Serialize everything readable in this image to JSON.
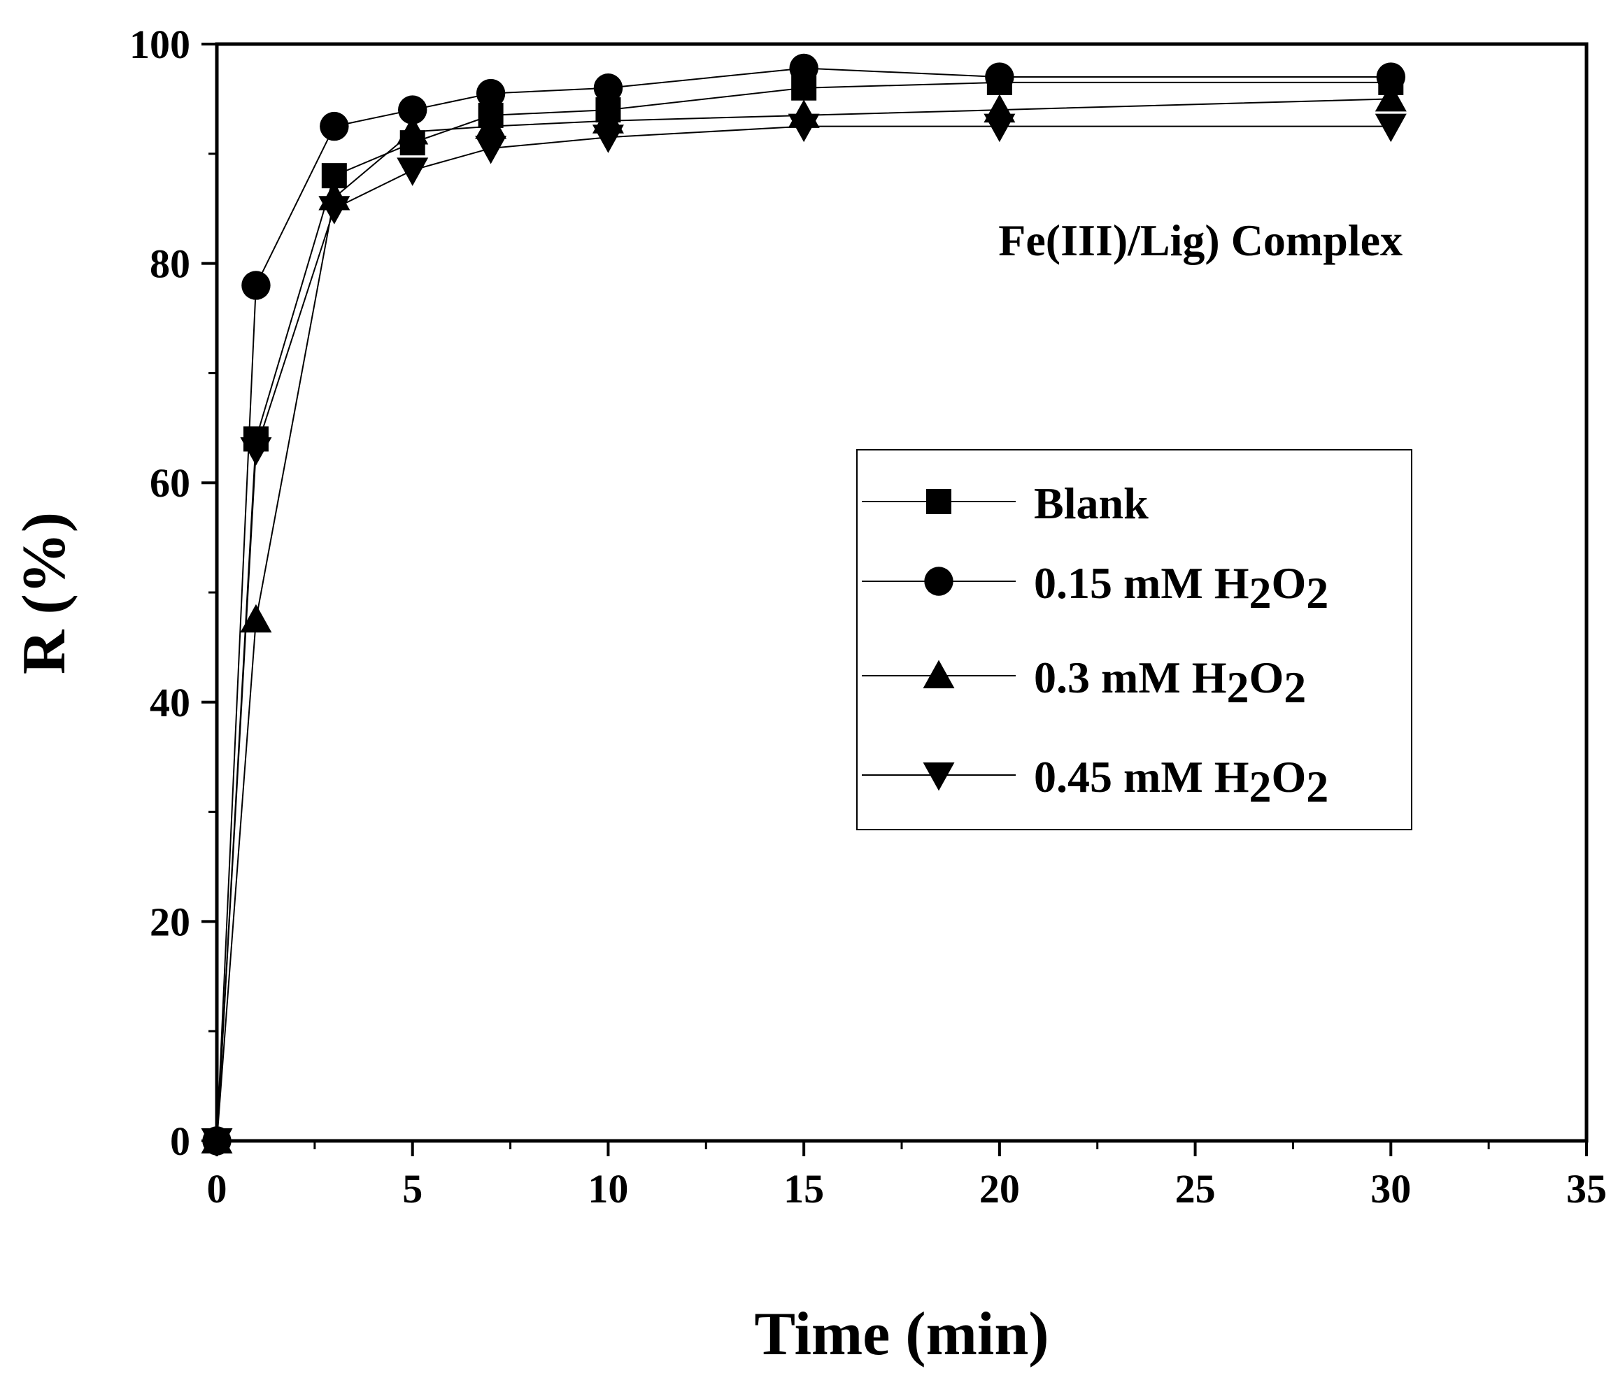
{
  "chart_data": {
    "type": "line",
    "xlabel": "Time (min)",
    "ylabel": "R (%)",
    "xlim": [
      0,
      35
    ],
    "ylim": [
      0,
      100
    ],
    "xticks": [
      "0",
      "5",
      "10",
      "15",
      "20",
      "25",
      "30",
      "35"
    ],
    "yticks": [
      "0",
      "20",
      "40",
      "60",
      "80",
      "100"
    ],
    "grid": false,
    "legend_position": "center-right",
    "annotation": "Fe(III)/Lig) Complex",
    "x": [
      0,
      1,
      3,
      5,
      7,
      10,
      15,
      20,
      30
    ],
    "series": [
      {
        "name": "Blank",
        "label_main": "Blank",
        "label_sub1": "",
        "label_mid": "",
        "label_sub2": "",
        "marker": "square",
        "values": [
          0,
          64,
          88,
          91,
          93.5,
          94,
          96,
          96.5,
          96.5
        ]
      },
      {
        "name": "0.15 mM H2O2",
        "label_main": "0.15 mM H",
        "label_sub1": "2",
        "label_mid": "O",
        "label_sub2": "2",
        "marker": "circle",
        "values": [
          0,
          78,
          92.5,
          94,
          95.5,
          96,
          97.8,
          97,
          97
        ]
      },
      {
        "name": "0.3 mM H2O2",
        "label_main": "0.3 mM H",
        "label_sub1": "2",
        "label_mid": "O",
        "label_sub2": "2",
        "marker": "triangle-up",
        "values": [
          0,
          47.5,
          86,
          92,
          92.5,
          93,
          93.5,
          94,
          95
        ]
      },
      {
        "name": "0.45 mM H2O2",
        "label_main": "0.45 mM H",
        "label_sub1": "2",
        "label_mid": "O",
        "label_sub2": "2",
        "marker": "triangle-down",
        "values": [
          0,
          63,
          85,
          88.5,
          90.5,
          91.5,
          92.5,
          92.5,
          92.5
        ]
      }
    ],
    "colors": {
      "line": "#000000",
      "marker": "#000000",
      "background": "#ffffff"
    }
  }
}
